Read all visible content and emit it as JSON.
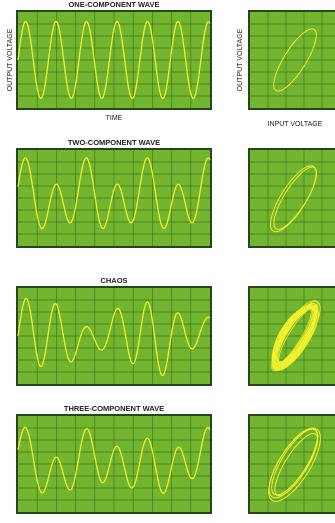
{
  "panels": [
    {
      "title": "ONE-COMPONENT WAVE"
    },
    {
      "title": "TWO-COMPONENT WAVE"
    },
    {
      "title": "CHAOS"
    },
    {
      "title": "THREE-COMPONENT WAVE"
    }
  ],
  "labels": {
    "wave_y": "OUTPUT VOLTAGE",
    "wave_x": "TIME",
    "phase_y": "OUTPUT VOLTAGE",
    "phase_x": "INPUT VOLTAGE"
  }
}
